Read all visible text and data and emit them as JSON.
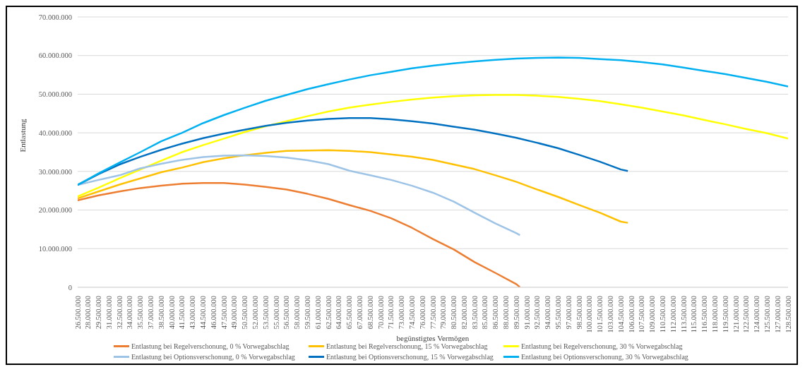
{
  "chart_data": {
    "type": "line",
    "xlabel": "begünstigtes Vermögen",
    "ylabel": "Entlastung",
    "grid": "y",
    "legend": "bottom",
    "marker": "none",
    "line_style": "solid",
    "xlim": [
      26500000,
      128500000
    ],
    "xticks": [
      {
        "value": 26500000,
        "label": "26.500.000"
      },
      {
        "value": 28000000,
        "label": "28.000.000"
      },
      {
        "value": 29500000,
        "label": "29.500.000"
      },
      {
        "value": 31000000,
        "label": "31.000.000"
      },
      {
        "value": 32500000,
        "label": "32.500.000"
      },
      {
        "value": 34000000,
        "label": "34.000.000"
      },
      {
        "value": 35500000,
        "label": "35.500.000"
      },
      {
        "value": 37000000,
        "label": "37.000.000"
      },
      {
        "value": 38500000,
        "label": "38.500.000"
      },
      {
        "value": 40000000,
        "label": "40.000.000"
      },
      {
        "value": 41500000,
        "label": "41.500.000"
      },
      {
        "value": 43000000,
        "label": "43.000.000"
      },
      {
        "value": 44500000,
        "label": "44.500.000"
      },
      {
        "value": 46000000,
        "label": "46.000.000"
      },
      {
        "value": 47500000,
        "label": "47.500.000"
      },
      {
        "value": 49000000,
        "label": "49.000.000"
      },
      {
        "value": 50500000,
        "label": "50.500.000"
      },
      {
        "value": 52000000,
        "label": "52.000.000"
      },
      {
        "value": 53500000,
        "label": "53.500.000"
      },
      {
        "value": 55000000,
        "label": "55.000.000"
      },
      {
        "value": 56500000,
        "label": "56.500.000"
      },
      {
        "value": 58000000,
        "label": "58.000.000"
      },
      {
        "value": 59500000,
        "label": "59.500.000"
      },
      {
        "value": 61000000,
        "label": "61.000.000"
      },
      {
        "value": 62500000,
        "label": "62.500.000"
      },
      {
        "value": 64000000,
        "label": "64.000.000"
      },
      {
        "value": 65500000,
        "label": "65.500.000"
      },
      {
        "value": 67000000,
        "label": "67.000.000"
      },
      {
        "value": 68500000,
        "label": "68.500.000"
      },
      {
        "value": 70000000,
        "label": "70.000.000"
      },
      {
        "value": 71500000,
        "label": "71.500.000"
      },
      {
        "value": 73000000,
        "label": "73.000.000"
      },
      {
        "value": 74500000,
        "label": "74.500.000"
      },
      {
        "value": 76000000,
        "label": "76.000.000"
      },
      {
        "value": 77500000,
        "label": "77.500.000"
      },
      {
        "value": 79000000,
        "label": "79.000.000"
      },
      {
        "value": 80500000,
        "label": "80.500.000"
      },
      {
        "value": 82000000,
        "label": "82.000.000"
      },
      {
        "value": 83500000,
        "label": "83.500.000"
      },
      {
        "value": 85000000,
        "label": "85.000.000"
      },
      {
        "value": 86500000,
        "label": "86.500.000"
      },
      {
        "value": 88000000,
        "label": "88.000.000"
      },
      {
        "value": 89500000,
        "label": "89.500.000"
      },
      {
        "value": 91000000,
        "label": "91.000.000"
      },
      {
        "value": 92500000,
        "label": "92.500.000"
      },
      {
        "value": 94000000,
        "label": "94.000.000"
      },
      {
        "value": 95500000,
        "label": "95.500.000"
      },
      {
        "value": 97000000,
        "label": "97.000.000"
      },
      {
        "value": 98500000,
        "label": "98.500.000"
      },
      {
        "value": 100000000,
        "label": "100.000.000"
      },
      {
        "value": 101500000,
        "label": "101.500.000"
      },
      {
        "value": 103000000,
        "label": "103.000.000"
      },
      {
        "value": 104500000,
        "label": "104.500.000"
      },
      {
        "value": 106000000,
        "label": "106.000.000"
      },
      {
        "value": 107500000,
        "label": "107.500.000"
      },
      {
        "value": 109000000,
        "label": "109.000.000"
      },
      {
        "value": 110500000,
        "label": "110.500.000"
      },
      {
        "value": 112000000,
        "label": "112.000.000"
      },
      {
        "value": 113500000,
        "label": "113.500.000"
      },
      {
        "value": 115000000,
        "label": "115.000.000"
      },
      {
        "value": 116500000,
        "label": "116.500.000"
      },
      {
        "value": 118000000,
        "label": "118.000.000"
      },
      {
        "value": 119500000,
        "label": "119.500.000"
      },
      {
        "value": 121000000,
        "label": "121.000.000"
      },
      {
        "value": 122500000,
        "label": "122.500.000"
      },
      {
        "value": 124000000,
        "label": "124.000.000"
      },
      {
        "value": 125500000,
        "label": "125.500.000"
      },
      {
        "value": 127000000,
        "label": "127.000.000"
      },
      {
        "value": 128500000,
        "label": "128.500.000"
      }
    ],
    "ylim": [
      0,
      70000000
    ],
    "yticks": [
      0,
      {
        "value": 10000000,
        "label": "10.000.000"
      },
      {
        "value": 20000000,
        "label": "20.000.000"
      },
      {
        "value": 30000000,
        "label": "30.000.000"
      },
      {
        "value": 40000000,
        "label": "40.000.000"
      },
      {
        "value": 50000000,
        "label": "50.000.000"
      },
      {
        "value": 60000000,
        "label": "60.000.000"
      },
      {
        "value": 70000000,
        "label": "70.000.000"
      }
    ],
    "series": [
      {
        "name": "Entlastung bei Regelverschonung, 0 % Vorwegabschlag",
        "color": "#ed7d31",
        "x": [
          26500000,
          29500000,
          32500000,
          35500000,
          38500000,
          41500000,
          44500000,
          47500000,
          50500000,
          53500000,
          56500000,
          59500000,
          62500000,
          65500000,
          68500000,
          71500000,
          74500000,
          77500000,
          80500000,
          83500000,
          86500000,
          89500000,
          90000000
        ],
        "values": [
          22500000,
          23800000,
          24800000,
          25700000,
          26300000,
          26800000,
          27000000,
          27000000,
          26600000,
          26000000,
          25300000,
          24200000,
          22900000,
          21300000,
          19800000,
          17900000,
          15400000,
          12500000,
          9800000,
          6500000,
          3700000,
          800000,
          0
        ]
      },
      {
        "name": "Entlastung bei Regelverschonung, 15 % Vorwegabschlag",
        "color": "#ffc000",
        "x": [
          26500000,
          29500000,
          32500000,
          35500000,
          38500000,
          41500000,
          44500000,
          47500000,
          50500000,
          53500000,
          56500000,
          59500000,
          62500000,
          65500000,
          68500000,
          71500000,
          74500000,
          77500000,
          80500000,
          83500000,
          86500000,
          89500000,
          92500000,
          95500000,
          98500000,
          101500000,
          104500000,
          105500000
        ],
        "values": [
          23000000,
          24800000,
          26600000,
          28200000,
          29800000,
          31000000,
          32400000,
          33400000,
          34200000,
          34800000,
          35300000,
          35400000,
          35500000,
          35300000,
          35000000,
          34400000,
          33800000,
          33000000,
          31800000,
          30600000,
          29000000,
          27300000,
          25300000,
          23400000,
          21300000,
          19300000,
          17000000,
          16700000
        ]
      },
      {
        "name": "Entlastung bei Regelverschonung, 30 % Vorwegabschlag",
        "color": "#ffff00",
        "x": [
          26500000,
          29500000,
          32500000,
          35500000,
          38500000,
          41500000,
          44500000,
          47500000,
          50500000,
          53500000,
          56500000,
          59500000,
          62500000,
          65500000,
          68500000,
          71500000,
          74500000,
          77500000,
          80500000,
          83500000,
          86500000,
          89500000,
          92500000,
          95500000,
          98500000,
          101500000,
          104500000,
          107500000,
          110500000,
          113500000,
          116500000,
          119500000,
          122500000,
          125500000,
          128500000
        ],
        "values": [
          23500000,
          25800000,
          28200000,
          30500000,
          32800000,
          35000000,
          36800000,
          38500000,
          40200000,
          41700000,
          43000000,
          44300000,
          45500000,
          46500000,
          47300000,
          48000000,
          48600000,
          49100000,
          49500000,
          49700000,
          49800000,
          49800000,
          49600000,
          49300000,
          48800000,
          48200000,
          47400000,
          46500000,
          45500000,
          44500000,
          43300000,
          42200000,
          41000000,
          39900000,
          38500000
        ]
      },
      {
        "name": "Entlastung bei Optionsverschonung, 0 % Vorwegabschlag",
        "color": "#9dc3e6",
        "x": [
          26500000,
          29500000,
          32500000,
          35500000,
          38500000,
          41500000,
          44500000,
          47500000,
          50500000,
          53500000,
          56500000,
          59500000,
          62500000,
          65500000,
          68500000,
          71500000,
          74500000,
          77500000,
          80500000,
          83500000,
          86500000,
          89500000,
          90000000
        ],
        "values": [
          26500000,
          27800000,
          29000000,
          30800000,
          32000000,
          33000000,
          33700000,
          34100000,
          34200000,
          34000000,
          33600000,
          32900000,
          31900000,
          30200000,
          29000000,
          27800000,
          26300000,
          24500000,
          22200000,
          19300000,
          16500000,
          14000000,
          13500000
        ]
      },
      {
        "name": "Entlastung bei Optionsverschonung, 15 % Vorwegabschlag",
        "color": "#0070c0",
        "x": [
          26500000,
          29500000,
          32500000,
          35500000,
          38500000,
          41500000,
          44500000,
          47500000,
          50500000,
          53500000,
          56500000,
          59500000,
          62500000,
          65500000,
          68500000,
          71500000,
          74500000,
          77500000,
          80500000,
          83500000,
          86500000,
          89500000,
          92500000,
          95500000,
          98500000,
          101500000,
          104500000,
          105500000
        ],
        "values": [
          26500000,
          29300000,
          31800000,
          33800000,
          35600000,
          37200000,
          38600000,
          39800000,
          40800000,
          41800000,
          42600000,
          43200000,
          43600000,
          43800000,
          43800000,
          43500000,
          43000000,
          42400000,
          41600000,
          40800000,
          39800000,
          38700000,
          37400000,
          36000000,
          34300000,
          32500000,
          30500000,
          30100000
        ]
      },
      {
        "name": "Entlastung bei Optionsverschonung, 30 % Vorwegabschlag",
        "color": "#00b0f0",
        "x": [
          26500000,
          29500000,
          32500000,
          35500000,
          38500000,
          41500000,
          44500000,
          47500000,
          50500000,
          53500000,
          56500000,
          59500000,
          62500000,
          65500000,
          68500000,
          71500000,
          74500000,
          77500000,
          80500000,
          83500000,
          86500000,
          89500000,
          92500000,
          95500000,
          98500000,
          101500000,
          104500000,
          107500000,
          110500000,
          113500000,
          116500000,
          119500000,
          122500000,
          125500000,
          128500000
        ],
        "values": [
          26500000,
          29500000,
          32300000,
          35000000,
          37800000,
          40000000,
          42500000,
          44600000,
          46500000,
          48300000,
          49800000,
          51300000,
          52600000,
          53800000,
          54900000,
          55800000,
          56700000,
          57400000,
          58000000,
          58500000,
          58900000,
          59200000,
          59400000,
          59500000,
          59400000,
          59100000,
          58800000,
          58300000,
          57700000,
          56900000,
          56000000,
          55200000,
          54200000,
          53200000,
          52000000
        ]
      }
    ]
  }
}
